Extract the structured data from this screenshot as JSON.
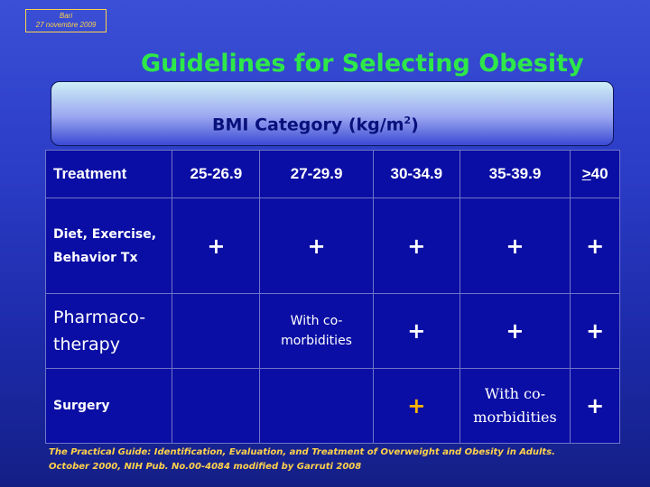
{
  "badge": {
    "line1": "Bari",
    "line2": "27 novembre 2009"
  },
  "title": "Guidelines for Selecting Obesity",
  "bmi_header": {
    "label": "BMI Category (kg/m",
    "superscript": "2",
    "suffix": ")"
  },
  "table": {
    "headers": {
      "treatment": "Treatment",
      "c1": "25-26.9",
      "c2": "27-29.9",
      "c3": "30-34.9",
      "c4": "35-39.9",
      "c5_symbol": ">",
      "c5_value": "40"
    },
    "rows": {
      "diet": {
        "label_line1": "Diet, Exercise,",
        "label_line2": "Behavior Tx",
        "c1": "+",
        "c2": "+",
        "c3": "+",
        "c4": "+",
        "c5": "+"
      },
      "pharm": {
        "label_line1": "Pharmaco-",
        "label_line2": "therapy",
        "c1": "",
        "c2_line1": "With co-",
        "c2_line2": "morbidities",
        "c3": "+",
        "c4": "+",
        "c5": "+"
      },
      "surg": {
        "label": "Surgery",
        "c1": "",
        "c2": "",
        "c3": "+",
        "c4_line1": "With co-",
        "c4_line2": "morbidities",
        "c5": "+"
      }
    }
  },
  "footer": {
    "line1": "The Practical Guide: Identification, Evaluation, and Treatment of Overweight and Obesity in Adults.",
    "line2": "October 2000, NIH Pub. No.00-4084 modified by Garruti 2008"
  },
  "colors": {
    "title": "#2ee84a",
    "plus_green": "#22e834",
    "plus_orange": "#ffb400",
    "badge": "#ffd24a",
    "table_bg": "#0b0ea4"
  }
}
